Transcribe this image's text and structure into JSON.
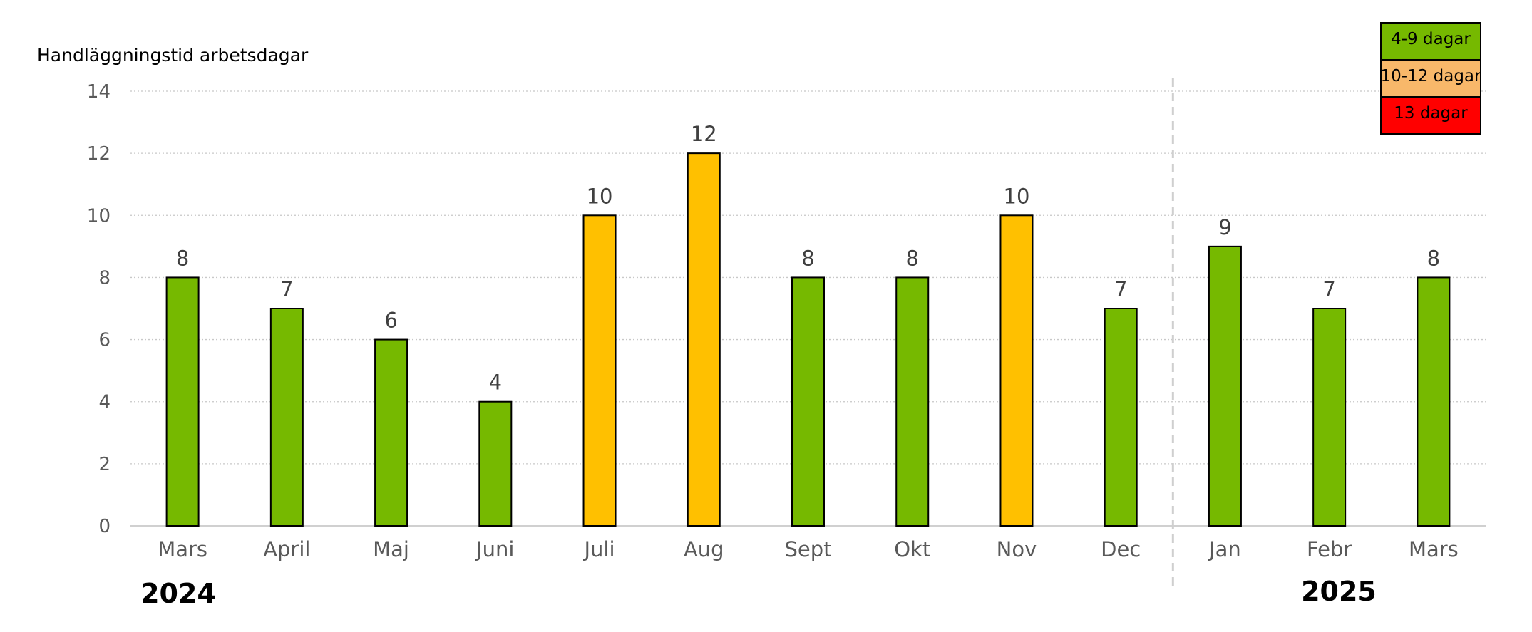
{
  "chart_data": {
    "type": "bar",
    "ylabel": "Handläggningstid arbetsdagar",
    "ylim": [
      0,
      14
    ],
    "yticks": [
      0,
      2,
      4,
      6,
      8,
      10,
      12,
      14
    ],
    "grid": true,
    "categories": [
      "Mars",
      "April",
      "Maj",
      "Juni",
      "Juli",
      "Aug",
      "Sept",
      "Okt",
      "Nov",
      "Dec",
      "Jan",
      "Febr",
      "Mars"
    ],
    "values": [
      8,
      7,
      6,
      4,
      10,
      12,
      8,
      8,
      10,
      7,
      9,
      7,
      8
    ],
    "year_labels": [
      "2024",
      "2025"
    ],
    "legend_placement": "top-right",
    "legend": [
      {
        "label": "4-9 dagar",
        "color": "#76b900"
      },
      {
        "label": "10-12 dagar",
        "color": "#f8b86a"
      },
      {
        "label": "13 dagar",
        "color": "#ff0000"
      }
    ],
    "bar_colors": {
      "low": "#76b900",
      "mid": "#ffc000",
      "high": "#ff0000"
    },
    "thresholds": {
      "mid_min": 10,
      "high_min": 13
    }
  }
}
